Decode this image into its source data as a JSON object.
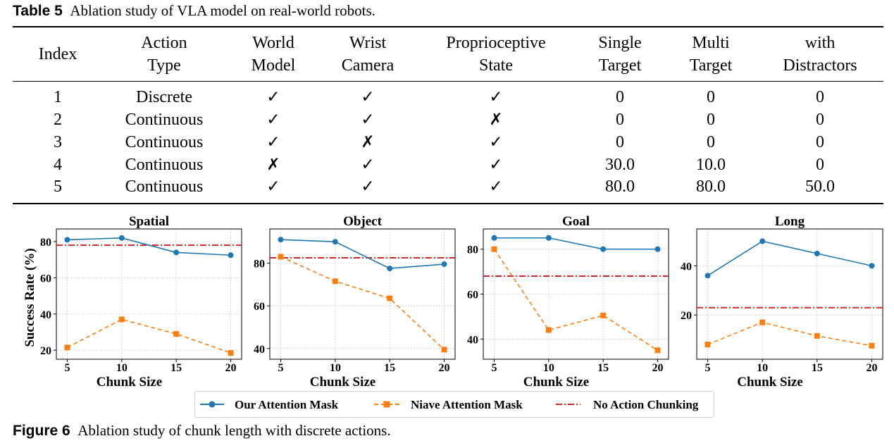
{
  "table": {
    "caption_label": "Table 5",
    "caption_text": "Ablation study of VLA model on real-world robots.",
    "headers": [
      {
        "line1": "Index",
        "line2": ""
      },
      {
        "line1": "Action",
        "line2": "Type"
      },
      {
        "line1": "World",
        "line2": "Model"
      },
      {
        "line1": "Wrist",
        "line2": "Camera"
      },
      {
        "line1": "Proprioceptive",
        "line2": "State"
      },
      {
        "line1": "Single",
        "line2": "Target"
      },
      {
        "line1": "Multi",
        "line2": "Target"
      },
      {
        "line1": "with",
        "line2": "Distractors"
      }
    ],
    "rows": [
      [
        "1",
        "Discrete",
        "✓",
        "✓",
        "✓",
        "0",
        "0",
        "0"
      ],
      [
        "2",
        "Continuous",
        "✓",
        "✓",
        "✗",
        "0",
        "0",
        "0"
      ],
      [
        "3",
        "Continuous",
        "✓",
        "✗",
        "✓",
        "0",
        "0",
        "0"
      ],
      [
        "4",
        "Continuous",
        "✗",
        "✓",
        "✓",
        "30.0",
        "10.0",
        "0"
      ],
      [
        "5",
        "Continuous",
        "✓",
        "✓",
        "✓",
        "80.0",
        "80.0",
        "50.0"
      ]
    ]
  },
  "figure": {
    "caption_label": "Figure 6",
    "caption_text": "Ablation study of chunk length with discrete actions."
  },
  "colors": {
    "our": "#1f77b4",
    "naive": "#ff7f0e",
    "none": "#d62728"
  },
  "chart_data": [
    {
      "type": "line",
      "title": "Spatial",
      "xlabel": "Chunk Size",
      "ylabel": "Success Rate (%)",
      "x": [
        5,
        10,
        15,
        20
      ],
      "xlim": [
        4,
        21
      ],
      "ylim": [
        15,
        87
      ],
      "yticks": [
        20,
        40,
        60,
        80
      ],
      "grid": true,
      "series": [
        {
          "name": "Our Attention Mask",
          "values": [
            81,
            82,
            74,
            72.5
          ]
        },
        {
          "name": "Niave Attention Mask",
          "values": [
            21.5,
            37,
            29,
            18.5
          ]
        }
      ],
      "hline": {
        "name": "No Action Chunking",
        "value": 78
      }
    },
    {
      "type": "line",
      "title": "Object",
      "xlabel": "Chunk Size",
      "ylabel": "",
      "x": [
        5,
        10,
        15,
        20
      ],
      "xlim": [
        4,
        21
      ],
      "ylim": [
        35,
        96
      ],
      "yticks": [
        40,
        60,
        80
      ],
      "grid": true,
      "series": [
        {
          "name": "Our Attention Mask",
          "values": [
            91,
            90,
            77.5,
            79.5
          ]
        },
        {
          "name": "Niave Attention Mask",
          "values": [
            83,
            71.5,
            63.5,
            39.5
          ]
        }
      ],
      "hline": {
        "name": "No Action Chunking",
        "value": 82.5
      }
    },
    {
      "type": "line",
      "title": "Goal",
      "xlabel": "Chunk Size",
      "ylabel": "",
      "x": [
        5,
        10,
        15,
        20
      ],
      "xlim": [
        4,
        21
      ],
      "ylim": [
        31,
        89
      ],
      "yticks": [
        40,
        60,
        80
      ],
      "grid": true,
      "series": [
        {
          "name": "Our Attention Mask",
          "values": [
            85,
            85,
            80,
            80
          ]
        },
        {
          "name": "Niave Attention Mask",
          "values": [
            80,
            44,
            50.5,
            35
          ]
        }
      ],
      "hline": {
        "name": "No Action Chunking",
        "value": 68
      }
    },
    {
      "type": "line",
      "title": "Long",
      "xlabel": "Chunk Size",
      "ylabel": "",
      "x": [
        5,
        10,
        15,
        20
      ],
      "xlim": [
        4,
        21
      ],
      "ylim": [
        2,
        55
      ],
      "yticks": [
        20,
        40
      ],
      "grid": true,
      "series": [
        {
          "name": "Our Attention Mask",
          "values": [
            36,
            50,
            45,
            40
          ]
        },
        {
          "name": "Niave Attention Mask",
          "values": [
            8,
            17,
            11.5,
            7.5
          ]
        }
      ],
      "hline": {
        "name": "No Action Chunking",
        "value": 23
      }
    }
  ],
  "legend": {
    "items": [
      {
        "label": "Our Attention Mask"
      },
      {
        "label": "Niave Attention Mask"
      },
      {
        "label": "No Action Chunking"
      }
    ]
  }
}
